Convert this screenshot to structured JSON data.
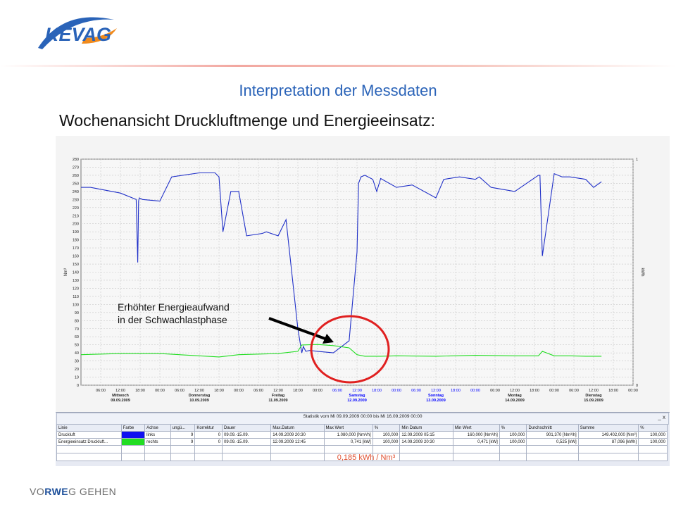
{
  "logo": {
    "text": "KEVAG"
  },
  "slide": {
    "heading": "Interpretation der Messdaten",
    "subheading": "Wochenansicht Druckluftmenge und Energieeinsatz:",
    "annotation_line1": "Erhöhter Energieaufwand",
    "annotation_line2": "in der Schwachlastphase",
    "ratio": "0,185 kWh / Nm³",
    "footer_logo": {
      "pre": "VO",
      "brand": "RWE",
      "post": "G GEHEN"
    }
  },
  "colors": {
    "accent": "#2a63b8",
    "highlight": "#e02020",
    "series_air": "#2030c8",
    "series_energy": "#22dd22"
  },
  "chart_data": {
    "type": "line",
    "ylabel_left": "Nm³",
    "ylabel_right": "kWh",
    "ylim_left": [
      0,
      280
    ],
    "ylim_right": [
      0,
      1
    ],
    "y_ticks": [
      0,
      10,
      20,
      30,
      40,
      50,
      60,
      70,
      80,
      90,
      100,
      110,
      120,
      130,
      140,
      150,
      160,
      170,
      180,
      190,
      200,
      210,
      220,
      230,
      240,
      250,
      260,
      270,
      280
    ],
    "right_ticks": [
      "0",
      "1"
    ],
    "x_ticks": [
      "06:00",
      "12:00",
      "18:00",
      "00:00",
      "06:00",
      "12:00",
      "18:00",
      "00:00",
      "06:00",
      "12:00",
      "18:00",
      "00:00",
      "06:00",
      "12:00",
      "18:00",
      "00:00",
      "06:00",
      "12:00",
      "18:00",
      "00:00",
      "06:00",
      "12:00",
      "18:00",
      "00:00",
      "06:00",
      "12:00",
      "18:00",
      "00:00"
    ],
    "days": [
      {
        "name": "Mittwoch",
        "date": "09.09.2009"
      },
      {
        "name": "Donnerstag",
        "date": "10.09.2009"
      },
      {
        "name": "Freitag",
        "date": "11.09.2009"
      },
      {
        "name": "Samstag",
        "date": "12.09.2009"
      },
      {
        "name": "Sonntag",
        "date": "13.09.2009"
      },
      {
        "name": "Montag",
        "date": "14.09.2009"
      },
      {
        "name": "Dienstag",
        "date": "15.09.2009"
      }
    ],
    "weekend_color": "#0000ff",
    "grid": true,
    "series": [
      {
        "name": "Druckluft",
        "axis": "links",
        "color": "#2030c8",
        "x": [
          0,
          0.12,
          0.5,
          0.7,
          0.72,
          0.73,
          0.74,
          0.78,
          1.0,
          1.15,
          1.5,
          1.7,
          1.75,
          1.8,
          1.9,
          2.0,
          2.1,
          2.3,
          2.35,
          2.5,
          2.55,
          2.6,
          2.75,
          2.8,
          2.82,
          2.85,
          2.9,
          3.0,
          3.2,
          3.4,
          3.5,
          3.52,
          3.55,
          3.6,
          3.7,
          3.75,
          3.8,
          4.0,
          4.2,
          4.5,
          4.6,
          4.8,
          5.0,
          5.05,
          5.2,
          5.5,
          5.8,
          5.82,
          5.85,
          6.0,
          6.1,
          6.2,
          6.4,
          6.5,
          6.6
        ],
        "y": [
          245,
          245,
          238,
          230,
          152,
          228,
          232,
          230,
          228,
          258,
          263,
          263,
          258,
          190,
          240,
          240,
          185,
          188,
          190,
          185,
          195,
          205,
          70,
          40,
          48,
          42,
          43,
          42,
          40,
          55,
          165,
          250,
          258,
          260,
          255,
          240,
          256,
          245,
          248,
          232,
          255,
          258,
          255,
          258,
          245,
          240,
          260,
          260,
          160,
          262,
          258,
          258,
          255,
          245,
          252
        ]
      },
      {
        "name": "Energieeinsatz Druckluft...",
        "axis": "rechts",
        "color": "#22dd22",
        "x": [
          0,
          0.5,
          1.0,
          1.5,
          1.75,
          2.0,
          2.5,
          2.75,
          2.8,
          3.0,
          3.2,
          3.4,
          3.5,
          3.6,
          3.8,
          4.0,
          4.5,
          5.0,
          5.5,
          5.8,
          5.85,
          6.0,
          6.2,
          6.4,
          6.6
        ],
        "y": [
          0.135,
          0.14,
          0.14,
          0.13,
          0.125,
          0.135,
          0.14,
          0.15,
          0.178,
          0.18,
          0.175,
          0.165,
          0.135,
          0.128,
          0.128,
          0.13,
          0.128,
          0.132,
          0.13,
          0.13,
          0.15,
          0.13,
          0.13,
          0.128,
          0.128
        ]
      }
    ]
  },
  "stats": {
    "title": "Statistik vom Mi 09.09.2009 00:00 bis Mi 16.09.2009 00:00",
    "window_buttons": "_ x",
    "columns": [
      "Linie",
      "Farbe",
      "Achse",
      "ungü...",
      "Korrektur",
      "Dauer",
      "Max.Datum",
      "Max Wert",
      "%",
      "Min Datum",
      "Min Wert",
      "%",
      "Durchschnitt",
      "Summe",
      "%"
    ],
    "rows": [
      {
        "linie": "Druckluft",
        "achse": "links",
        "ungue": "9",
        "korrektur": "0",
        "dauer": "09.09.-15.09.",
        "max_datum": "14.09.2009 20:30",
        "max_wert": "1.080,000 [Nm³/h]",
        "max_pct": "100,000",
        "min_datum": "12.09.2009 05:15",
        "min_wert": "160,000 [Nm³/h]",
        "min_pct": "100,000",
        "durchschnitt": "901,370 [Nm³/h]",
        "summe": "149.402,000 [Nm³]",
        "sum_pct": "100,000"
      },
      {
        "linie": "Energieeinsatz Druckluft...",
        "achse": "rechts",
        "ungue": "9",
        "korrektur": "0",
        "dauer": "09.09.-15.09.",
        "max_datum": "12.09.2009 12:45",
        "max_wert": "0,741 [kW]",
        "max_pct": "100,000",
        "min_datum": "14.09.2009 20:30",
        "min_wert": "0,471 [kW]",
        "min_pct": "100,000",
        "durchschnitt": "0,525 [kW]",
        "summe": "87,096 [kWh]",
        "sum_pct": "100,000"
      }
    ]
  }
}
